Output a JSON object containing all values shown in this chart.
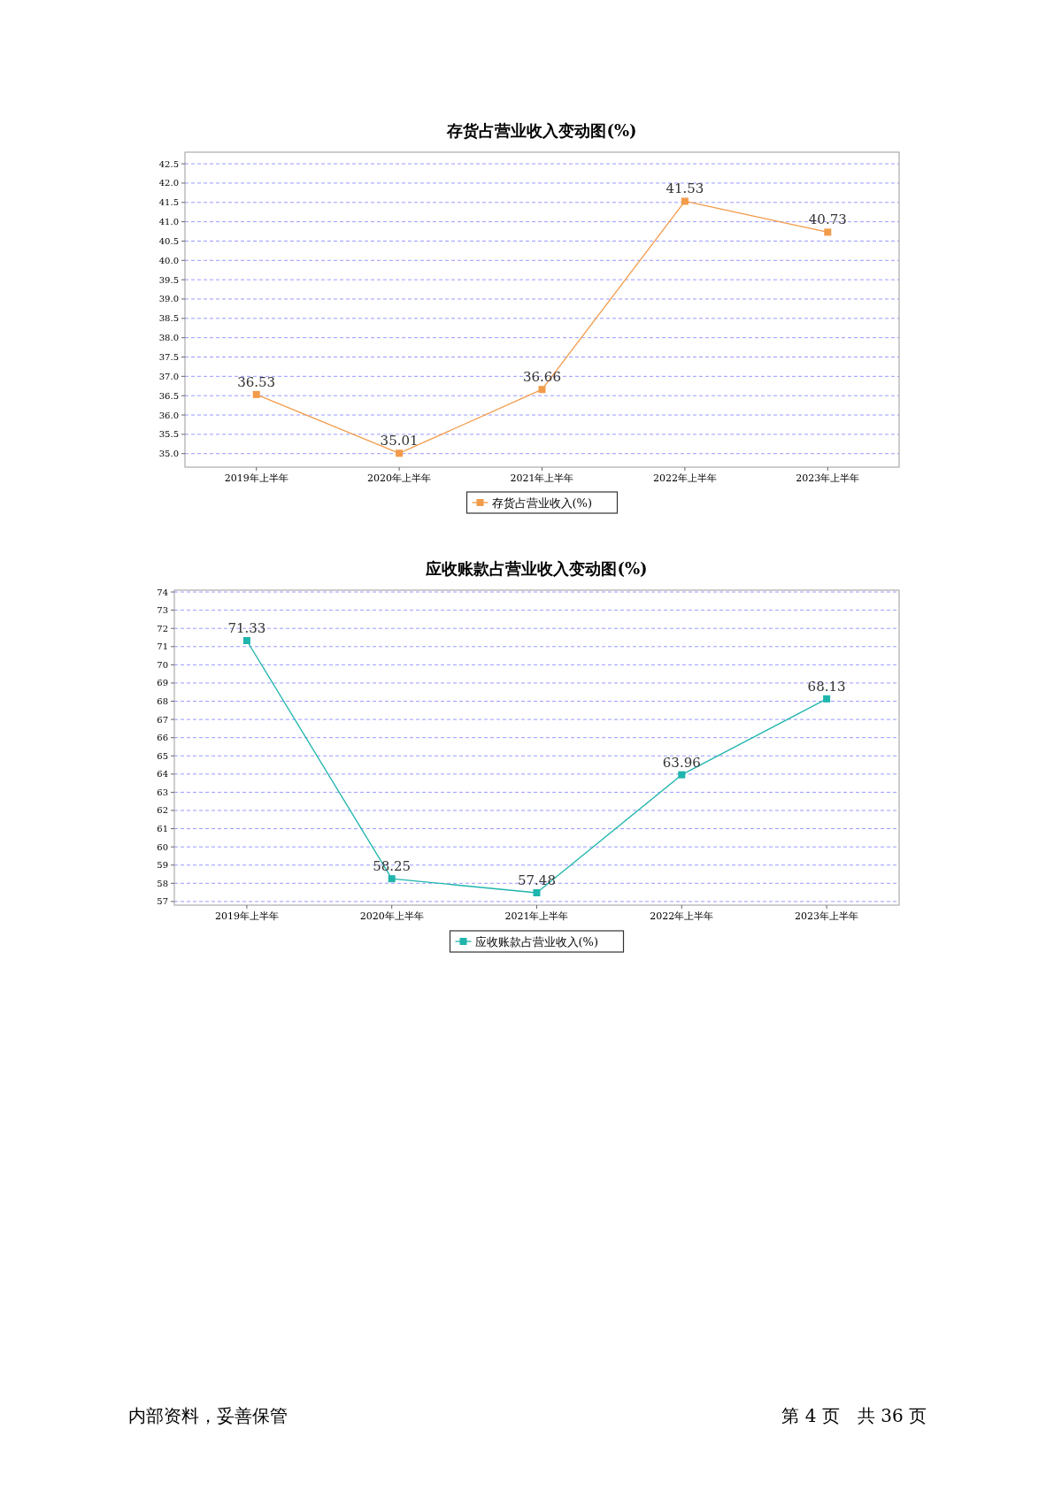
{
  "chart_data": [
    {
      "type": "line",
      "title": "存货占营业收入变动图(%)",
      "categories": [
        "2019年上半年",
        "2020年上半年",
        "2021年上半年",
        "2022年上半年",
        "2023年上半年"
      ],
      "series": [
        {
          "name": "存货占营业收入(%)",
          "color": "#f29b4a",
          "values": [
            36.53,
            35.01,
            36.66,
            41.53,
            40.73
          ]
        }
      ],
      "ylim": [
        34.65,
        42.8
      ],
      "yticks": [
        {
          "value": 35,
          "label": "35.0"
        },
        35.5,
        {
          "value": 36,
          "label": "36.0"
        },
        36.5,
        {
          "value": 37,
          "label": "37.0"
        },
        37.5,
        {
          "value": 38,
          "label": "38.0"
        },
        38.5,
        {
          "value": 39,
          "label": "39.0"
        },
        39.5,
        {
          "value": 40,
          "label": "40.0"
        },
        40.5,
        {
          "value": 41,
          "label": "41.0"
        },
        41.5,
        {
          "value": 42,
          "label": "42.0"
        },
        42.5
      ],
      "grid": "y",
      "legend": "bottom",
      "marker": "square",
      "line_style": "solid",
      "data_labels": true
    },
    {
      "type": "line",
      "title": "应收账款占营业收入变动图(%)",
      "categories": [
        "2019年上半年",
        "2020年上半年",
        "2021年上半年",
        "2022年上半年",
        "2023年上半年"
      ],
      "series": [
        {
          "name": "应收账款占营业收入(%)",
          "color": "#1fb5ac",
          "values": [
            71.33,
            58.25,
            57.48,
            63.96,
            68.13
          ]
        }
      ],
      "ylim": [
        56.8,
        74.1
      ],
      "yticks": [
        57,
        58,
        59,
        60,
        61,
        62,
        63,
        64,
        65,
        66,
        67,
        68,
        69,
        70,
        71,
        72,
        73,
        74
      ],
      "grid": "y",
      "legend": "bottom",
      "marker": "square",
      "line_style": "solid",
      "data_labels": true,
      "annotations": [
        "内部资料，妥善保管",
        "第 4 页　共 36 页"
      ]
    }
  ]
}
